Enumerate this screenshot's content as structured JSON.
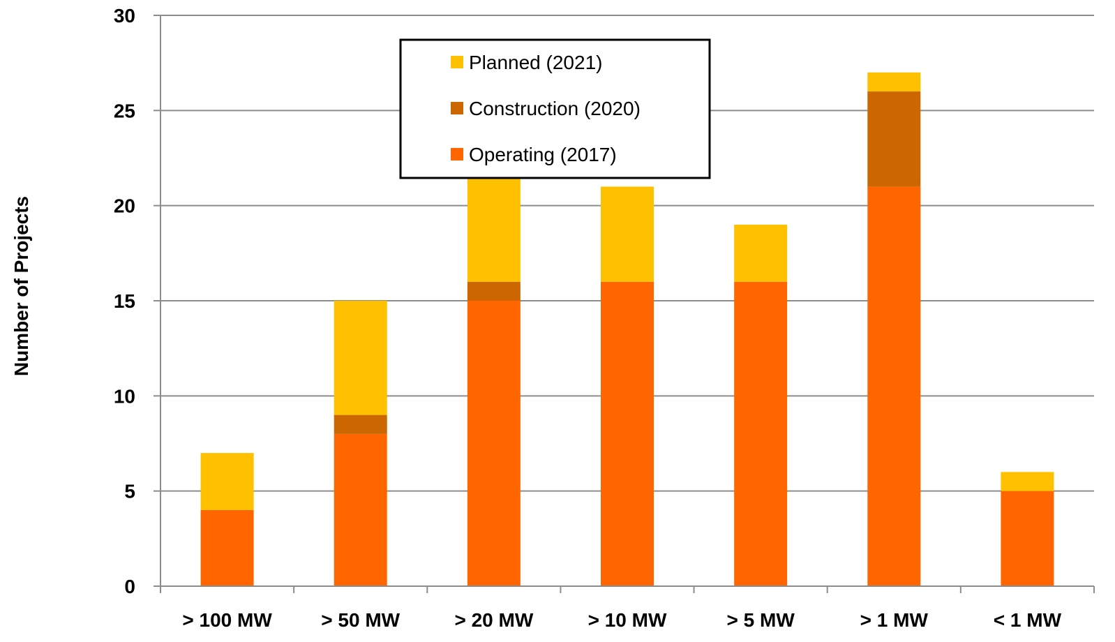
{
  "chart_data": {
    "type": "bar",
    "stacked": true,
    "title": "",
    "xlabel": "",
    "ylabel": "Number of Projects",
    "ylim": [
      0,
      30
    ],
    "yticks": [
      0,
      5,
      10,
      15,
      20,
      25,
      30
    ],
    "grid": true,
    "legend_position": "top-center",
    "categories": [
      "> 100 MW",
      "> 50 MW",
      "> 20 MW",
      "> 10 MW",
      "> 5 MW",
      "> 1 MW",
      "< 1 MW"
    ],
    "series": [
      {
        "name": "Operating (2017)",
        "color": "#FF6600",
        "values": [
          4,
          8,
          15,
          16,
          16,
          21,
          5
        ]
      },
      {
        "name": "Construction (2020)",
        "color": "#CC6600",
        "values": [
          0,
          1,
          1,
          0,
          0,
          5,
          0
        ]
      },
      {
        "name": "Planned (2021)",
        "color": "#FFC000",
        "values": [
          3,
          6,
          6,
          5,
          3,
          1,
          1
        ]
      }
    ],
    "legend_order": [
      "Planned (2021)",
      "Construction (2020)",
      "Operating (2017)"
    ]
  }
}
